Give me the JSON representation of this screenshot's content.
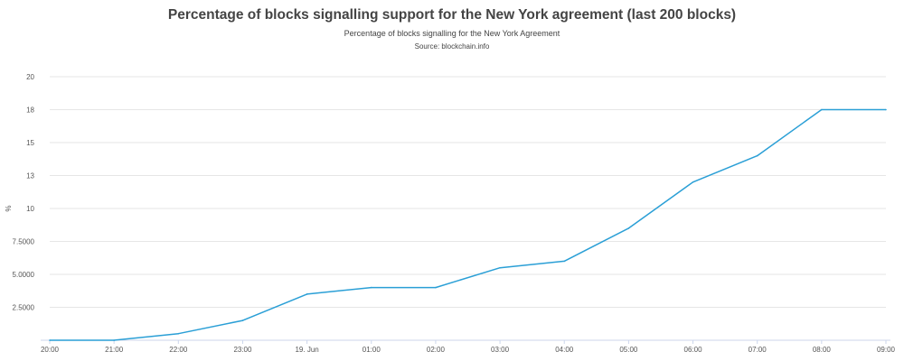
{
  "chart_data": {
    "type": "line",
    "title": "Percentage of blocks signalling support for the New York agreement (last 200 blocks)",
    "subtitle": "Percentage of blocks signalling for the New York Agreement",
    "source": "Source: blockchain.info",
    "ylabel": "%",
    "xlabel": "",
    "ylim": [
      0,
      20
    ],
    "y_ticks": [
      {
        "value": 2.5,
        "label": "2.5000"
      },
      {
        "value": 5,
        "label": "5.0000"
      },
      {
        "value": 7.5,
        "label": "7.5000"
      },
      {
        "value": 10,
        "label": "10"
      },
      {
        "value": 12.5,
        "label": "13"
      },
      {
        "value": 15,
        "label": "15"
      },
      {
        "value": 17.5,
        "label": "18"
      },
      {
        "value": 20,
        "label": "20"
      }
    ],
    "categories": [
      "20:00",
      "21:00",
      "22:00",
      "23:00",
      "19. Jun",
      "01:00",
      "02:00",
      "03:00",
      "04:00",
      "05:00",
      "06:00",
      "07:00",
      "08:00",
      "09:00"
    ],
    "grid": "horizontal",
    "legend": "none",
    "series": [
      {
        "color": "#2a9fd6",
        "values": [
          0,
          0,
          0.5,
          1.5,
          3.5,
          4.0,
          4.0,
          5.5,
          6.0,
          8.5,
          12.0,
          14.0,
          17.5,
          17.5
        ]
      }
    ]
  }
}
